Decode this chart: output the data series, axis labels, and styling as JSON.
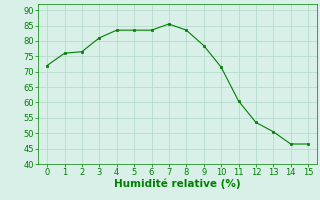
{
  "x": [
    0,
    1,
    2,
    3,
    4,
    5,
    6,
    7,
    8,
    9,
    10,
    11,
    12,
    13,
    14,
    15
  ],
  "y": [
    72,
    76,
    76.5,
    81,
    83.5,
    83.5,
    83.5,
    85.5,
    83.5,
    78.5,
    71.5,
    60.5,
    53.5,
    50.5,
    46.5,
    46.5
  ],
  "xlabel": "Humidité relative (%)",
  "ylim": [
    40,
    92
  ],
  "xlim": [
    -0.5,
    15.5
  ],
  "yticks": [
    40,
    45,
    50,
    55,
    60,
    65,
    70,
    75,
    80,
    85,
    90
  ],
  "xticks": [
    0,
    1,
    2,
    3,
    4,
    5,
    6,
    7,
    8,
    9,
    10,
    11,
    12,
    13,
    14,
    15
  ],
  "line_color": "#008000",
  "marker_color": "#008000",
  "bg_color": "#d8f0e8",
  "grid_color": "#b0d8c8",
  "xlabel_color": "#008000",
  "xlabel_fontsize": 7.5,
  "tick_fontsize": 6.0
}
